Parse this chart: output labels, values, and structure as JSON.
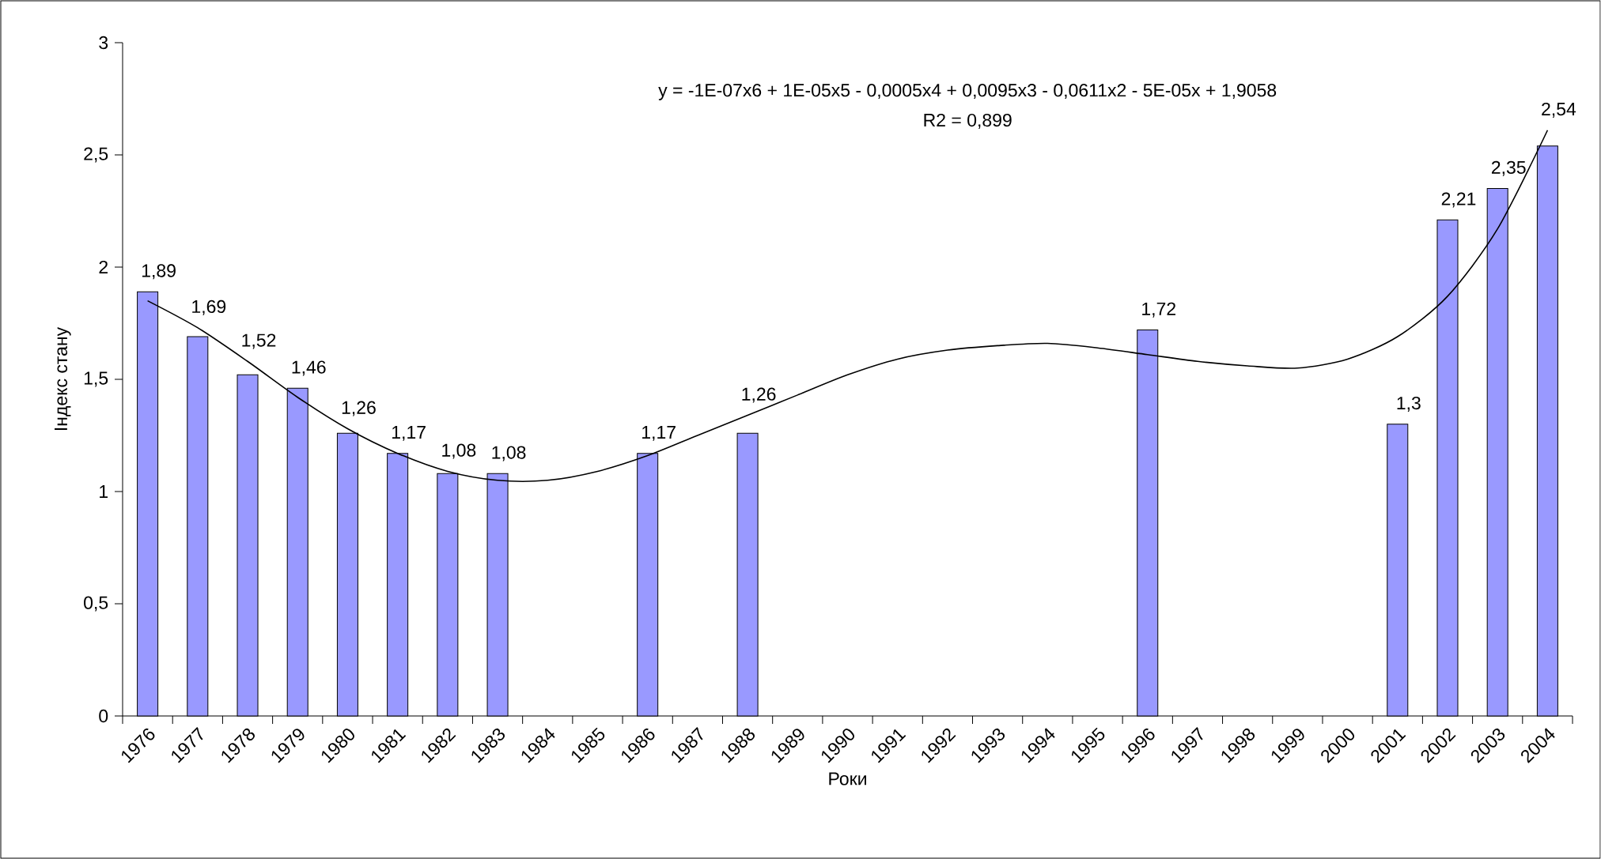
{
  "chart_data": {
    "type": "bar",
    "xlabel": "Роки",
    "ylabel": "Індекс стану",
    "categories": [
      "1976",
      "1977",
      "1978",
      "1979",
      "1980",
      "1981",
      "1982",
      "1983",
      "1984",
      "1985",
      "1986",
      "1987",
      "1988",
      "1989",
      "1990",
      "1991",
      "1992",
      "1993",
      "1994",
      "1995",
      "1996",
      "1997",
      "1998",
      "1999",
      "2000",
      "2001",
      "2002",
      "2003",
      "2004"
    ],
    "series": [
      {
        "color": "#9999ff",
        "values": [
          1.89,
          1.69,
          1.52,
          1.46,
          1.26,
          1.17,
          1.08,
          1.08,
          null,
          null,
          1.17,
          null,
          1.26,
          null,
          null,
          null,
          null,
          null,
          null,
          null,
          1.72,
          null,
          null,
          null,
          null,
          1.3,
          2.21,
          2.35,
          2.54
        ],
        "value_labels": [
          "1,89",
          "1,69",
          "1,52",
          "1,46",
          "1,26",
          "1,17",
          "1,08",
          "1,08",
          null,
          null,
          "1,17",
          null,
          "1,26",
          null,
          null,
          null,
          null,
          null,
          null,
          null,
          "1,72",
          null,
          null,
          null,
          null,
          "1,3",
          "2,21",
          "2,35",
          "2,54"
        ]
      },
      {
        "type": "line",
        "color": "#000000",
        "values": [
          1.85,
          1.73,
          1.58,
          1.42,
          1.28,
          1.17,
          1.09,
          1.05,
          1.05,
          1.09,
          1.16,
          1.25,
          1.34,
          1.43,
          1.52,
          1.59,
          1.63,
          1.65,
          1.66,
          1.64,
          1.61,
          1.58,
          1.56,
          1.55,
          1.59,
          1.69,
          1.87,
          2.17,
          2.61
        ]
      }
    ],
    "ylim": [
      0,
      3
    ],
    "yticks": [
      0,
      {
        "value": 0.5,
        "label": "0,5"
      },
      1,
      {
        "value": 1.5,
        "label": "1,5"
      },
      2,
      {
        "value": 2.5,
        "label": "2,5"
      },
      3
    ],
    "annotations": [
      "y = -1E-07x6 + 1E-05x5 - 0,0005x4 + 0,0095x3 - 0,0611x2 - 5E-05x + 1,9058",
      "R2 = 0,899"
    ]
  }
}
